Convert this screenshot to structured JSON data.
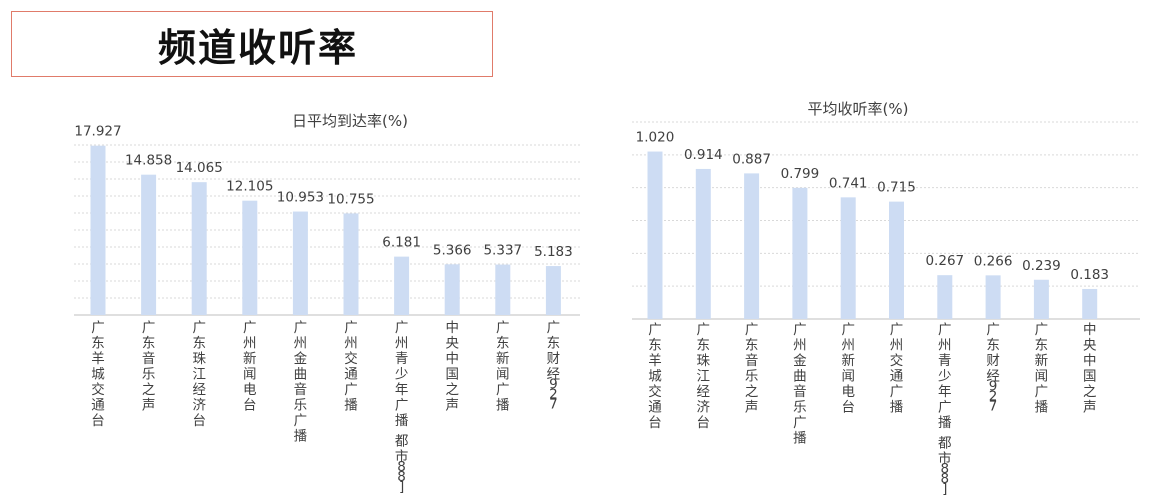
{
  "page": {
    "title": "频道收听率"
  },
  "colors": {
    "bar": "#cddcf3",
    "grid": "#d9d9d9",
    "axis": "#bfbfbf",
    "title_border": "#e07b6a"
  },
  "chart_data": [
    {
      "type": "bar",
      "title": "日平均到达率(%)",
      "categories": [
        "广东羊城交通台",
        "广东音乐之声",
        "广东珠江经济台",
        "广州新闻电台",
        "广州金曲音乐广播",
        "广州交通广播",
        "广州青少年广播 都市88]",
        "中央中国之声",
        "广东新闻广播",
        "广东财经927"
      ],
      "values": [
        17.927,
        14.858,
        14.065,
        12.105,
        10.953,
        10.755,
        6.181,
        5.366,
        5.337,
        5.183
      ],
      "value_labels": [
        "17.927",
        "14.858",
        "14.065",
        "12.105",
        "10.953",
        "10.755",
        "6.181",
        "5.366",
        "5.337",
        "5.183"
      ],
      "xlabel": "",
      "ylabel": "",
      "ylim": [
        0,
        18
      ],
      "grid": true,
      "legend": "none"
    },
    {
      "type": "bar",
      "title": "平均收听率(%)",
      "categories": [
        "广东羊城交通台",
        "广东珠江经济台",
        "广东音乐之声",
        "广州金曲音乐广播",
        "广州新闻电台",
        "广州交通广播",
        "广州青少年广播 都市88]",
        "广东财经927",
        "广东新闻广播",
        "中央中国之声"
      ],
      "values": [
        1.02,
        0.914,
        0.887,
        0.799,
        0.741,
        0.715,
        0.267,
        0.266,
        0.239,
        0.183
      ],
      "value_labels": [
        "1.020",
        "0.914",
        "0.887",
        "0.799",
        "0.741",
        "0.715",
        "0.267",
        "0.266",
        "0.239",
        "0.183"
      ],
      "xlabel": "",
      "ylabel": "",
      "ylim": [
        0,
        1.2
      ],
      "grid": true,
      "legend": "none"
    }
  ]
}
